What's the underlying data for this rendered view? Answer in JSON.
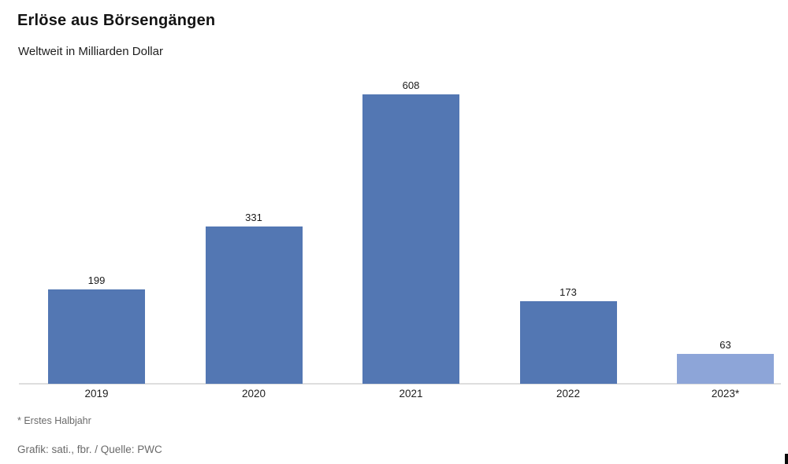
{
  "header": {
    "title": "Erlöse aus Börsengängen",
    "subtitle": "Weltweit in Milliarden Dollar"
  },
  "footer": {
    "footnote": "* Erstes Halbjahr",
    "credit": "Grafik: sati., fbr. / Quelle: PWC"
  },
  "colors": {
    "bar_default": "#5377b3",
    "bar_highlight": "#8da5d8",
    "axis_line": "#dedede",
    "text_dark": "#1a1a1a",
    "text_muted": "#6a6a6a"
  },
  "chart_data": {
    "type": "bar",
    "title": "Erlöse aus Börsengängen",
    "subtitle": "Weltweit in Milliarden Dollar",
    "categories": [
      "2019",
      "2020",
      "2021",
      "2022",
      "2023*"
    ],
    "values": [
      199,
      331,
      608,
      173,
      63
    ],
    "bar_colors": [
      "#5377b3",
      "#5377b3",
      "#5377b3",
      "#5377b3",
      "#8da5d8"
    ],
    "xlabel": "",
    "ylabel": "Milliarden Dollar",
    "ylim": [
      0,
      650
    ],
    "grid": false,
    "legend": "none",
    "value_labels": true,
    "footnote": "* Erstes Halbjahr",
    "source": "Grafik: sati., fbr. / Quelle: PWC"
  }
}
